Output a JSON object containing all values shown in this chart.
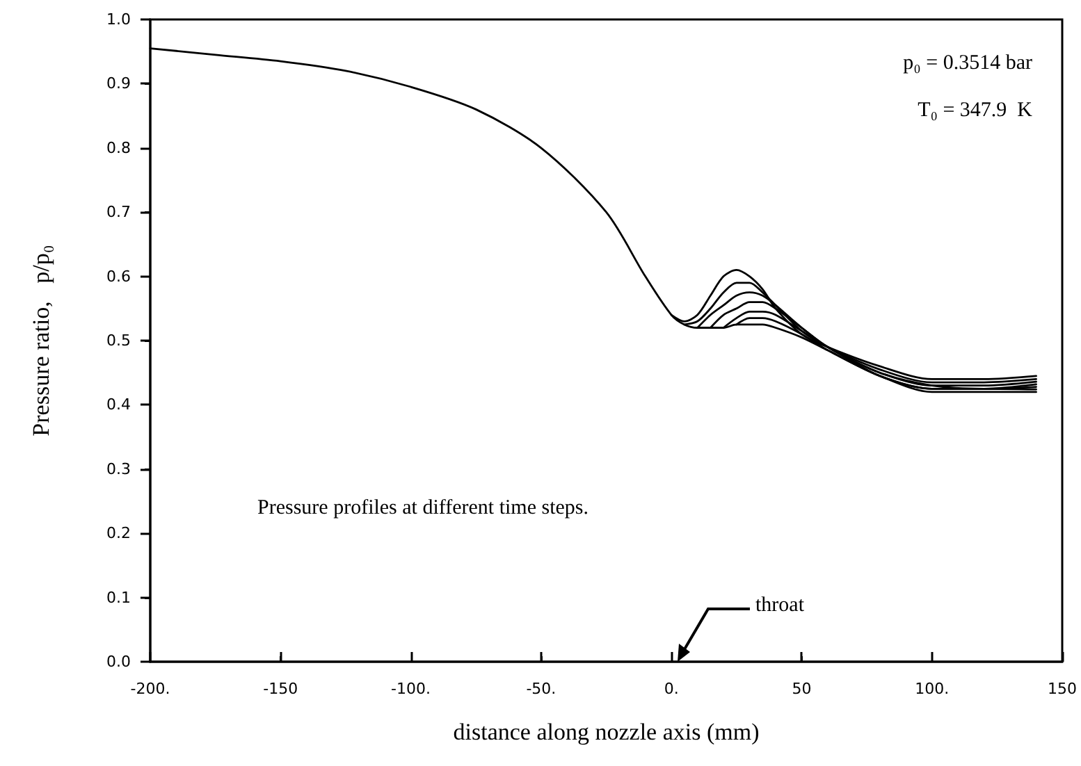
{
  "chart_data": {
    "type": "line",
    "xlabel": "distance along nozzle axis (mm)",
    "ylabel": "Pressure ratio,   p/p₀",
    "annotations": [
      "p₀ = 0.3514 bar",
      "T₀ = 347.9  K",
      "Pressure profiles at different time steps.",
      "throat"
    ],
    "series": [
      {
        "color": "#000000",
        "x": [
          -200,
          -175,
          -150,
          -125,
          -100,
          -75,
          -50,
          -25,
          -10,
          0,
          5,
          10,
          15,
          20,
          25,
          30,
          35,
          40,
          50,
          60,
          80,
          100,
          120,
          140
        ],
        "values": [
          0.955,
          0.945,
          0.935,
          0.92,
          0.895,
          0.86,
          0.8,
          0.7,
          0.6,
          0.54,
          0.525,
          0.52,
          0.52,
          0.52,
          0.525,
          0.525,
          0.525,
          0.52,
          0.505,
          0.485,
          0.445,
          0.425,
          0.425,
          0.432
        ]
      },
      {
        "color": "#000000",
        "x": [
          0,
          5,
          10,
          15,
          20,
          25,
          30,
          35,
          40,
          50,
          60,
          80,
          100,
          120,
          140
        ],
        "values": [
          0.54,
          0.53,
          0.54,
          0.57,
          0.6,
          0.61,
          0.6,
          0.58,
          0.55,
          0.51,
          0.49,
          0.46,
          0.44,
          0.44,
          0.445
        ]
      },
      {
        "color": "#000000",
        "x": [
          5,
          10,
          15,
          20,
          25,
          30,
          35,
          40,
          50,
          60,
          80,
          100,
          120,
          140
        ],
        "values": [
          0.525,
          0.53,
          0.55,
          0.575,
          0.59,
          0.59,
          0.575,
          0.555,
          0.515,
          0.49,
          0.455,
          0.435,
          0.435,
          0.44
        ]
      },
      {
        "color": "#000000",
        "x": [
          10,
          15,
          20,
          25,
          30,
          35,
          40,
          50,
          60,
          80,
          100,
          120,
          140
        ],
        "values": [
          0.52,
          0.54,
          0.555,
          0.57,
          0.575,
          0.57,
          0.555,
          0.52,
          0.49,
          0.45,
          0.43,
          0.43,
          0.436
        ]
      },
      {
        "color": "#000000",
        "x": [
          15,
          20,
          25,
          30,
          35,
          40,
          50,
          60,
          80,
          100,
          120,
          140
        ],
        "values": [
          0.52,
          0.54,
          0.55,
          0.56,
          0.56,
          0.55,
          0.52,
          0.49,
          0.45,
          0.43,
          0.425,
          0.428
        ]
      },
      {
        "color": "#000000",
        "x": [
          20,
          25,
          30,
          35,
          40,
          50,
          60,
          80,
          100,
          120,
          140
        ],
        "values": [
          0.52,
          0.535,
          0.545,
          0.545,
          0.54,
          0.515,
          0.49,
          0.445,
          0.425,
          0.425,
          0.424
        ]
      },
      {
        "color": "#000000",
        "x": [
          25,
          30,
          35,
          40,
          50,
          60,
          80,
          100,
          120,
          140
        ],
        "values": [
          0.525,
          0.535,
          0.535,
          0.53,
          0.51,
          0.485,
          0.445,
          0.42,
          0.42,
          0.42
        ]
      }
    ],
    "xlim": [
      -200,
      150
    ],
    "xticks": [
      {
        "value": -200,
        "label": "-200."
      },
      -150,
      {
        "value": -100,
        "label": "-100."
      },
      {
        "value": -50,
        "label": "-50."
      },
      {
        "value": 0,
        "label": "0."
      },
      50,
      {
        "value": 100,
        "label": "100."
      },
      150
    ],
    "ylim": [
      0,
      1
    ],
    "yticks": [
      {
        "value": 0,
        "label": "0.0"
      },
      0.1,
      0.2,
      0.3,
      0.4,
      0.5,
      0.6,
      0.7,
      0.8,
      0.9,
      {
        "value": 1,
        "label": "1.0"
      }
    ],
    "marker": "none",
    "line_style": "solid",
    "grid": false
  }
}
